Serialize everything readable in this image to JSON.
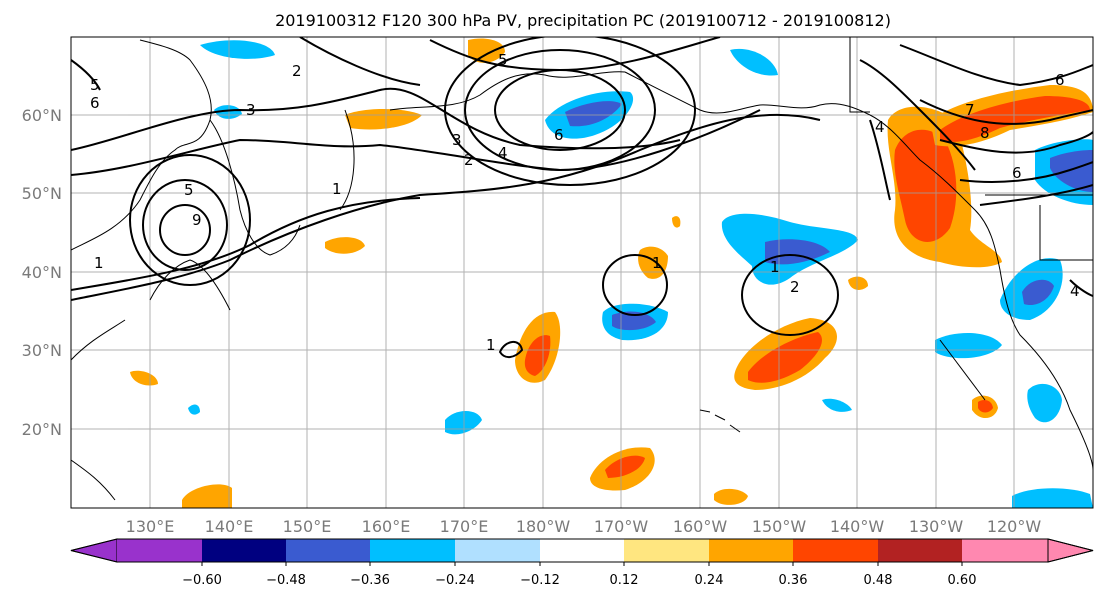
{
  "title": "2019100312 F120 300 hPa PV, precipitation PC (2019100712 - 2019100812)",
  "map": {
    "lon_ticks": [
      "130°E",
      "140°E",
      "150°E",
      "160°E",
      "170°E",
      "180°W",
      "170°W",
      "160°W",
      "150°W",
      "140°W",
      "130°W",
      "120°W"
    ],
    "lat_ticks": [
      "60°N",
      "50°N",
      "40°N",
      "30°N",
      "20°N"
    ],
    "contour_labels": [
      "5",
      "6",
      "2",
      "3",
      "5",
      "6",
      "3",
      "2",
      "4",
      "1",
      "5",
      "9",
      "1",
      "1",
      "1",
      "1",
      "2",
      "6",
      "7",
      "8",
      "6",
      "4",
      "4"
    ]
  },
  "colorbar": {
    "ticks": [
      "−0.60",
      "−0.48",
      "−0.36",
      "−0.24",
      "−0.12",
      "0.12",
      "0.24",
      "0.36",
      "0.48",
      "0.60"
    ],
    "colors": [
      "#9932cc",
      "#000080",
      "#3a5bd0",
      "#00bfff",
      "#b0e0ff",
      "#ffffff",
      "#ffe680",
      "#ffa500",
      "#ff4500",
      "#b22222",
      "#ff88b0"
    ]
  },
  "colors": {
    "neg_deep": "#3a5bd0",
    "neg_mid": "#00bfff",
    "neg_light": "#b0e0ff",
    "pos_light": "#ffe680",
    "pos_mid": "#ffa500",
    "pos_strong": "#ff4500",
    "grid": "#a0a0a0"
  }
}
